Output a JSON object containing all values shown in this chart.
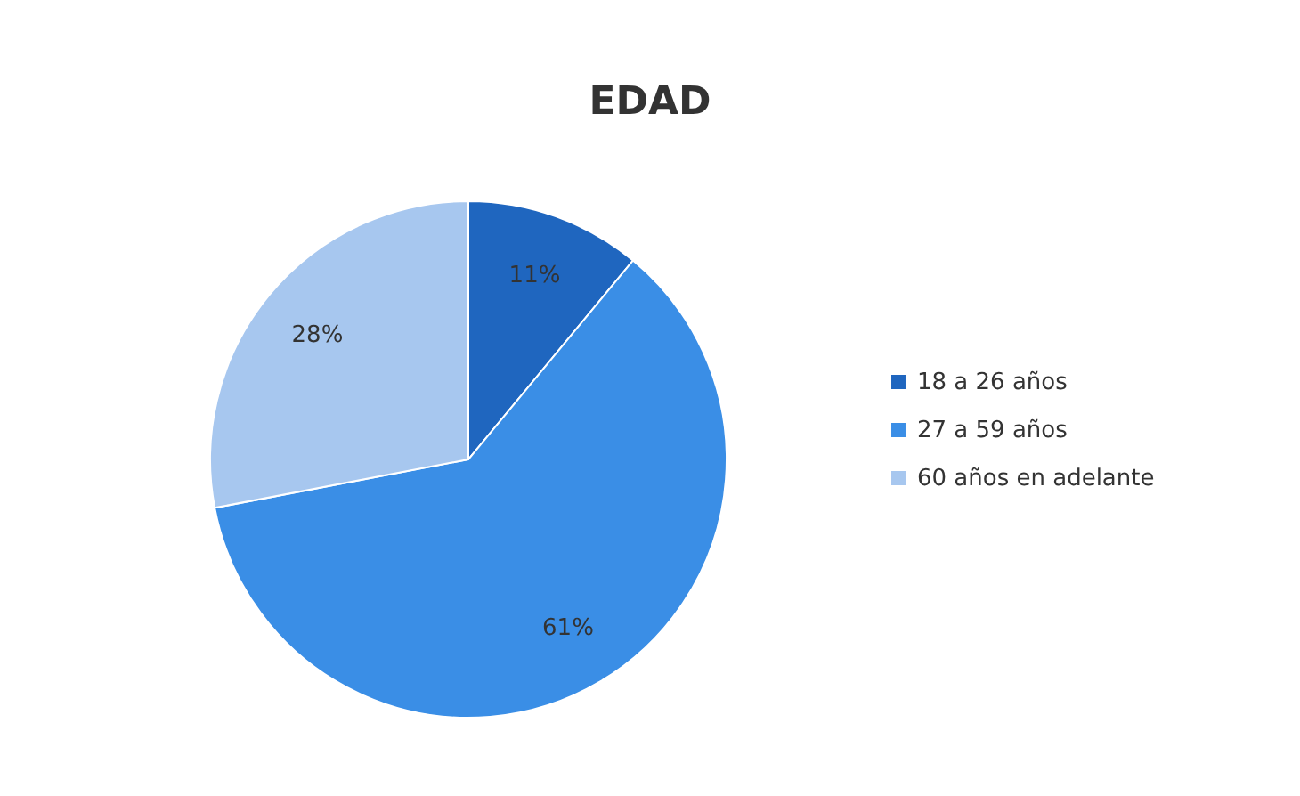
{
  "chart_data": {
    "type": "pie",
    "title": "EDAD",
    "categories": [
      "18 a 26 años",
      "27 a 59 años",
      "60 años en adelante"
    ],
    "values": [
      11,
      61,
      28
    ],
    "colors": [
      "#1f66bf",
      "#3a8ee6",
      "#a7c7ef"
    ],
    "value_labels": [
      "11%",
      "61%",
      "28%"
    ],
    "legend": "right"
  }
}
